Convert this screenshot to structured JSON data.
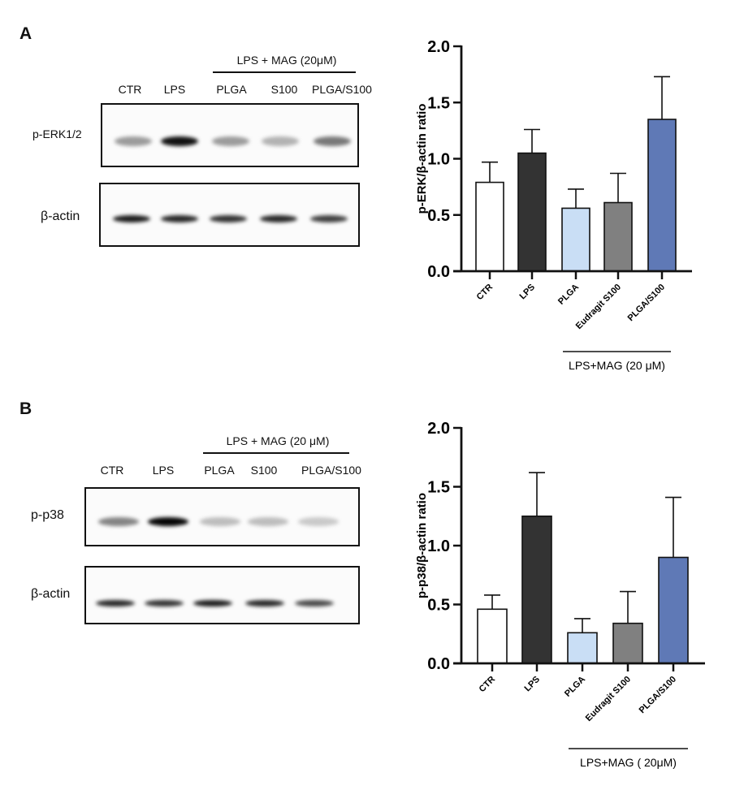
{
  "panels": [
    {
      "label": "A",
      "blot": {
        "treatment_header": "LPS + MAG (20μM)",
        "lanes": [
          "CTR",
          "LPS",
          "PLGA",
          "S100",
          "PLGA/S100"
        ],
        "rows": [
          {
            "label": "p-ERK1/2",
            "band_intensity": [
              0.35,
              0.95,
              0.35,
              0.25,
              0.5
            ]
          },
          {
            "label": "β-actin",
            "band_intensity": [
              0.9,
              0.85,
              0.8,
              0.85,
              0.75
            ]
          }
        ]
      }
    },
    {
      "label": "B",
      "blot": {
        "treatment_header": "LPS + MAG (20 μM)",
        "lanes": [
          "CTR",
          "LPS",
          "PLGA",
          "S100",
          "PLGA/S100"
        ],
        "rows": [
          {
            "label": "p-p38",
            "band_intensity": [
              0.45,
              1.0,
              0.2,
              0.2,
              0.15
            ]
          },
          {
            "label": "β-actin",
            "band_intensity": [
              0.85,
              0.8,
              0.9,
              0.85,
              0.7
            ]
          }
        ]
      }
    }
  ],
  "chart_data": [
    {
      "type": "bar",
      "title": "",
      "xlabel": "",
      "ylabel": "p-ERK/β-actin ratio",
      "ylim": [
        0,
        2.0
      ],
      "yticks": [
        "0.0",
        "0.5",
        "1.0",
        "1.5",
        "2.0"
      ],
      "grid": false,
      "categories": [
        "CTR",
        "LPS",
        "PLGA",
        "Eudragit S100",
        "PLGA/S100"
      ],
      "values": [
        0.79,
        1.05,
        0.56,
        0.61,
        1.35
      ],
      "error_upper": [
        0.97,
        1.26,
        0.73,
        0.87,
        1.73
      ],
      "colors": [
        "#ffffff",
        "#333333",
        "#c9def5",
        "#808080",
        "#5f79b6"
      ],
      "group_annotation": {
        "label": "LPS+MAG (20 μM)",
        "spans": [
          "PLGA",
          "Eudragit S100",
          "PLGA/S100"
        ]
      }
    },
    {
      "type": "bar",
      "title": "",
      "xlabel": "",
      "ylabel": "p-p38/β-actin ratio",
      "ylim": [
        0,
        2.0
      ],
      "yticks": [
        "0.0",
        "0.5",
        "1.0",
        "1.5",
        "2.0"
      ],
      "grid": false,
      "categories": [
        "CTR",
        "LPS",
        "PLGA",
        "Eudragit S100",
        "PLGA/S100"
      ],
      "values": [
        0.46,
        1.25,
        0.26,
        0.34,
        0.9
      ],
      "error_upper": [
        0.58,
        1.62,
        0.38,
        0.61,
        1.41
      ],
      "colors": [
        "#ffffff",
        "#333333",
        "#c9def5",
        "#808080",
        "#5f79b6"
      ],
      "group_annotation": {
        "label": "LPS+MAG ( 20μM)",
        "spans": [
          "PLGA",
          "Eudragit S100",
          "PLGA/S100"
        ]
      }
    }
  ]
}
